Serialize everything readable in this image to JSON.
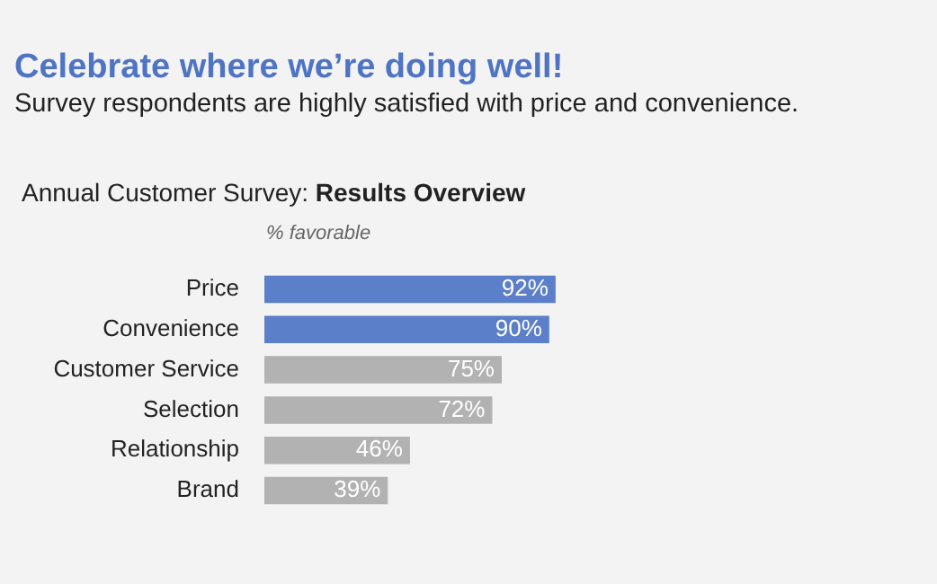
{
  "chart_data": {
    "type": "bar",
    "orientation": "horizontal",
    "title": "Celebrate where we’re doing well!",
    "subtitle": "Survey respondents are highly satisfied with price and convenience.",
    "annotations": [
      "Annual Customer Survey: Results Overview"
    ],
    "xlabel": "% favorable",
    "categories": [
      "Price",
      "Convenience",
      "Customer Service",
      "Selection",
      "Relationship",
      "Brand"
    ],
    "values": [
      92,
      90,
      75,
      72,
      46,
      39
    ],
    "colors": [
      "#5b7fc8",
      "#5b7fc8",
      "#b2b2b2",
      "#b2b2b2",
      "#b2b2b2",
      "#b2b2b2"
    ],
    "value_labels": [
      "92%",
      "90%",
      "75%",
      "72%",
      "46%",
      "39%"
    ],
    "legend": false
  }
}
